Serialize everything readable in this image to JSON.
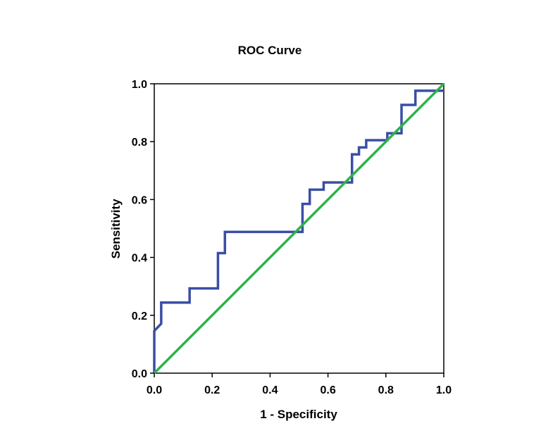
{
  "chart_data": {
    "type": "line",
    "title": "ROC Curve",
    "xlabel": "1 - Specificity",
    "ylabel": "Sensitivity",
    "xlim": [
      0,
      1
    ],
    "ylim": [
      0,
      1
    ],
    "x_ticks": [
      "0.0",
      "0.2",
      "0.4",
      "0.6",
      "0.8",
      "1.0"
    ],
    "y_ticks": [
      "0.0",
      "0.2",
      "0.4",
      "0.6",
      "0.8",
      "1.0"
    ],
    "grid": false,
    "series": [
      {
        "color": "#3a4ea5",
        "step": true,
        "x": [
          0.0,
          0.0,
          0.024,
          0.024,
          0.122,
          0.122,
          0.22,
          0.22,
          0.244,
          0.244,
          0.512,
          0.512,
          0.537,
          0.537,
          0.585,
          0.585,
          0.683,
          0.683,
          0.707,
          0.707,
          0.732,
          0.732,
          0.805,
          0.805,
          0.854,
          0.854,
          0.902,
          0.902,
          1.0
        ],
        "y": [
          0.0,
          0.146,
          0.171,
          0.244,
          0.244,
          0.293,
          0.293,
          0.415,
          0.415,
          0.488,
          0.488,
          0.585,
          0.585,
          0.634,
          0.634,
          0.659,
          0.659,
          0.756,
          0.756,
          0.78,
          0.78,
          0.805,
          0.805,
          0.829,
          0.829,
          0.927,
          0.927,
          0.976,
          0.976
        ]
      },
      {
        "color": "#2db34a",
        "step": false,
        "x": [
          0,
          1
        ],
        "y": [
          0,
          1
        ]
      }
    ]
  }
}
